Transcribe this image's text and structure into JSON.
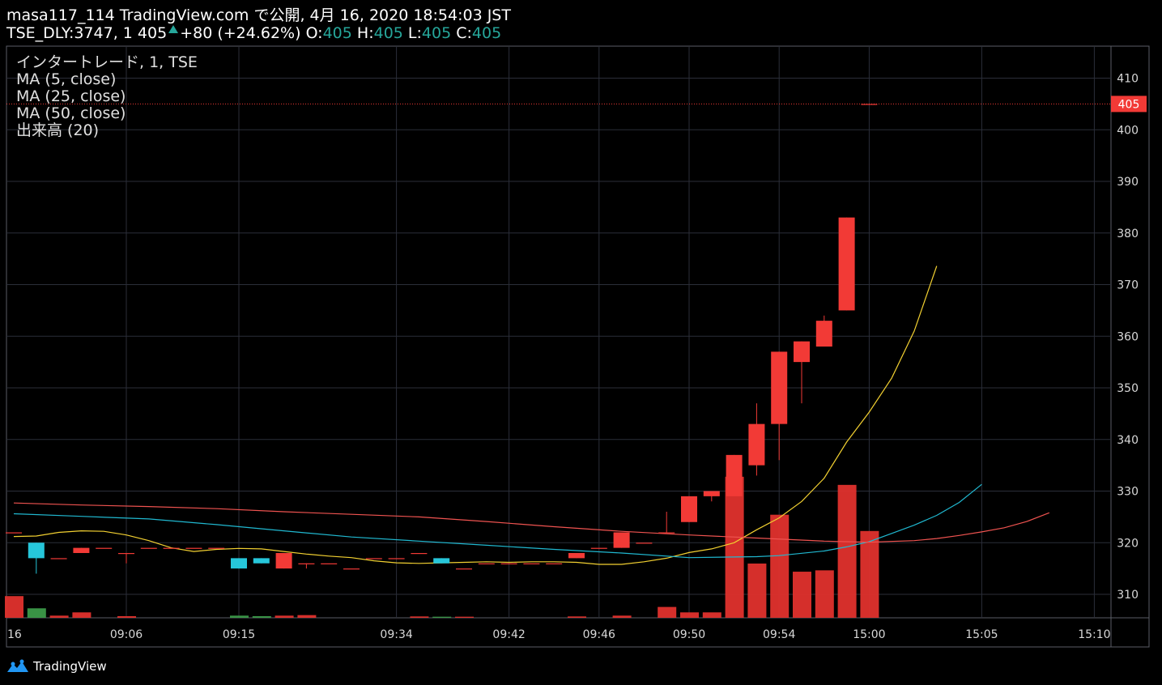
{
  "header": {
    "line1": "masa117_114 TradingView.com で公開, 4月 16, 2020 18:54:03 JST",
    "symbol": "TSE_DLY:3747, 1",
    "last": "405",
    "change": "+80 (+24.62%)",
    "o_label": "O:",
    "o": "405",
    "h_label": "H:",
    "h": "405",
    "l_label": "L:",
    "l": "405",
    "c_label": "C:",
    "c": "405"
  },
  "legend": [
    "インタートレード, 1, TSE",
    "MA (5, close)",
    "MA (25, close)",
    "MA (50, close)",
    "出来高 (20)"
  ],
  "brand": "TradingView",
  "chart_data": {
    "type": "candlestick",
    "y_ticks": [
      310,
      320,
      330,
      340,
      350,
      360,
      370,
      380,
      390,
      400,
      410
    ],
    "price_label": "405",
    "x_tick_labels": [
      {
        "i": 0,
        "label": "16"
      },
      {
        "i": 5,
        "label": "09:06"
      },
      {
        "i": 10,
        "label": "09:15"
      },
      {
        "i": 17,
        "label": "09:34"
      },
      {
        "i": 22,
        "label": "09:42"
      },
      {
        "i": 26,
        "label": "09:46"
      },
      {
        "i": 30,
        "label": "09:50"
      },
      {
        "i": 34,
        "label": "09:54"
      },
      {
        "i": 38,
        "label": "15:00"
      },
      {
        "i": 43,
        "label": "15:05"
      },
      {
        "i": 48,
        "label": "15:10"
      }
    ],
    "candles": [
      {
        "i": 0,
        "o": 322,
        "h": 322,
        "l": 322,
        "c": 322,
        "v": 4
      },
      {
        "i": 1,
        "o": 317,
        "h": 320,
        "l": 314,
        "c": 320,
        "v": 2
      },
      {
        "i": 2,
        "o": 317,
        "h": 317,
        "l": 317,
        "c": 317,
        "v": 0.4
      },
      {
        "i": 3,
        "o": 319,
        "h": 319,
        "l": 318,
        "c": 318,
        "v": 1
      },
      {
        "i": 4,
        "o": 319,
        "h": 319,
        "l": 319,
        "c": 319,
        "v": 0.2
      },
      {
        "i": 5,
        "o": 318,
        "h": 318,
        "l": 316,
        "c": 318,
        "v": 0.3
      },
      {
        "i": 6,
        "o": 319,
        "h": 319,
        "l": 319,
        "c": 319,
        "v": 0.1
      },
      {
        "i": 7,
        "o": 319,
        "h": 319,
        "l": 319,
        "c": 319,
        "v": 0.1
      },
      {
        "i": 8,
        "o": 319,
        "h": 319,
        "l": 319,
        "c": 319,
        "v": 0.1
      },
      {
        "i": 9,
        "o": 319,
        "h": 319,
        "l": 319,
        "c": 319,
        "v": 0.1
      },
      {
        "i": 10,
        "o": 315,
        "h": 317,
        "l": 315,
        "c": 317,
        "v": 0.5
      },
      {
        "i": 11,
        "o": 316,
        "h": 317,
        "l": 316,
        "c": 317,
        "v": 0.4
      },
      {
        "i": 12,
        "o": 318,
        "h": 318,
        "l": 315,
        "c": 315,
        "v": 0.3
      },
      {
        "i": 13,
        "o": 316,
        "h": 316,
        "l": 315,
        "c": 316,
        "v": 0.5
      },
      {
        "i": 14,
        "o": 316,
        "h": 316,
        "l": 316,
        "c": 316,
        "v": 0.1
      },
      {
        "i": 15,
        "o": 315,
        "h": 315,
        "l": 315,
        "c": 315,
        "v": 0.1
      },
      {
        "i": 16,
        "o": 317,
        "h": 317,
        "l": 317,
        "c": 317,
        "v": 0.1
      },
      {
        "i": 17,
        "o": 317,
        "h": 317,
        "l": 317,
        "c": 317,
        "v": 0.1
      },
      {
        "i": 18,
        "o": 318,
        "h": 318,
        "l": 318,
        "c": 318,
        "v": 0.1
      },
      {
        "i": 19,
        "o": 316,
        "h": 317,
        "l": 316,
        "c": 317,
        "v": 0.2
      },
      {
        "i": 20,
        "o": 315,
        "h": 315,
        "l": 315,
        "c": 315,
        "v": 0.1
      },
      {
        "i": 21,
        "o": 316,
        "h": 316,
        "l": 316,
        "c": 316,
        "v": 0.1
      },
      {
        "i": 22,
        "o": 316,
        "h": 316,
        "l": 316,
        "c": 316,
        "v": 0.1
      },
      {
        "i": 23,
        "o": 316,
        "h": 316,
        "l": 316,
        "c": 316,
        "v": 0.1
      },
      {
        "i": 24,
        "o": 316,
        "h": 316,
        "l": 316,
        "c": 316,
        "v": 0.1
      },
      {
        "i": 25,
        "o": 318,
        "h": 318,
        "l": 317,
        "c": 317,
        "v": 0.1
      },
      {
        "i": 26,
        "o": 319,
        "h": 319,
        "l": 319,
        "c": 319,
        "v": 0.1
      },
      {
        "i": 27,
        "o": 322,
        "h": 322,
        "l": 319,
        "c": 319,
        "v": 0.3
      },
      {
        "i": 28,
        "o": 320,
        "h": 320,
        "l": 320,
        "c": 320,
        "v": 0.1
      },
      {
        "i": 29,
        "o": 322,
        "h": 326,
        "l": 322,
        "c": 322,
        "v": 0.2
      },
      {
        "i": 30,
        "o": 329,
        "h": 329,
        "l": 324,
        "c": 324,
        "v": 4
      },
      {
        "i": 31,
        "o": 330,
        "h": 330,
        "l": 328,
        "c": 329,
        "v": 3
      },
      {
        "i": 32,
        "o": 337,
        "h": 337,
        "l": 329,
        "c": 329,
        "v": 3
      },
      {
        "i": 33,
        "o": 343,
        "h": 347,
        "l": 333,
        "c": 335,
        "v": 27
      },
      {
        "i": 34,
        "o": 357,
        "h": 357,
        "l": 336,
        "c": 343,
        "v": 48
      },
      {
        "i": 35,
        "o": 359,
        "h": 359,
        "l": 347,
        "c": 355,
        "v": 18
      },
      {
        "i": 36,
        "o": 363,
        "h": 364,
        "l": 358,
        "c": 358,
        "v": 35
      },
      {
        "i": 37,
        "o": 383,
        "h": 383,
        "l": 365,
        "c": 365,
        "v": 16
      },
      {
        "i": 38,
        "o": 405,
        "h": 405,
        "l": 405,
        "c": 405,
        "v": 17
      }
    ],
    "volume_bars": [
      {
        "i": 0,
        "v": 8,
        "up": false
      },
      {
        "i": 1,
        "v": 3.5,
        "up": true
      },
      {
        "i": 2,
        "v": 0.8,
        "up": false
      },
      {
        "i": 3,
        "v": 2,
        "up": false
      },
      {
        "i": 5,
        "v": 0.6,
        "up": false
      },
      {
        "i": 10,
        "v": 0.8,
        "up": true
      },
      {
        "i": 11,
        "v": 0.6,
        "up": true
      },
      {
        "i": 12,
        "v": 0.8,
        "up": false
      },
      {
        "i": 13,
        "v": 1,
        "up": false
      },
      {
        "i": 18,
        "v": 0.5,
        "up": false
      },
      {
        "i": 19,
        "v": 0.4,
        "up": true
      },
      {
        "i": 20,
        "v": 0.4,
        "up": false
      },
      {
        "i": 25,
        "v": 0.5,
        "up": false
      },
      {
        "i": 27,
        "v": 0.8,
        "up": false
      },
      {
        "i": 29,
        "v": 4,
        "up": false
      },
      {
        "i": 30,
        "v": 2,
        "up": false
      },
      {
        "i": 31,
        "v": 2,
        "up": false
      },
      {
        "i": 32,
        "v": 52,
        "up": false
      },
      {
        "i": 33,
        "v": 20,
        "up": false
      },
      {
        "i": 34,
        "v": 38,
        "up": false
      },
      {
        "i": 35,
        "v": 17,
        "up": false
      },
      {
        "i": 36,
        "v": 17.5,
        "up": false
      },
      {
        "i": 37,
        "v": 49,
        "up": false
      },
      {
        "i": 38,
        "v": 32,
        "up": false
      }
    ],
    "series": [
      {
        "color": "#f2d031",
        "points": [
          [
            0,
            321.2
          ],
          [
            1,
            321.3
          ],
          [
            2,
            322
          ],
          [
            3,
            322.3
          ],
          [
            4,
            322.2
          ],
          [
            5,
            321.5
          ],
          [
            6,
            320.4
          ],
          [
            7,
            319
          ],
          [
            8,
            318.3
          ],
          [
            9,
            318.7
          ],
          [
            10,
            318.9
          ],
          [
            11,
            318.8
          ],
          [
            12,
            318.3
          ],
          [
            13,
            317.8
          ],
          [
            14,
            317.4
          ],
          [
            15,
            317.1
          ],
          [
            16,
            316.5
          ],
          [
            17,
            316.1
          ],
          [
            18,
            316
          ],
          [
            19,
            316.1
          ],
          [
            20,
            316.2
          ],
          [
            21,
            316.3
          ],
          [
            22,
            316.2
          ],
          [
            23,
            316.3
          ],
          [
            24,
            316.3
          ],
          [
            25,
            316.2
          ],
          [
            26,
            315.8
          ],
          [
            27,
            315.8
          ],
          [
            28,
            316.3
          ],
          [
            29,
            317
          ],
          [
            30,
            318.1
          ],
          [
            31,
            318.8
          ],
          [
            32,
            320
          ],
          [
            33,
            322.5
          ],
          [
            34,
            324.8
          ],
          [
            35,
            328
          ],
          [
            36,
            332.5
          ],
          [
            37,
            339.5
          ],
          [
            38,
            345.3
          ],
          [
            39,
            351.9
          ],
          [
            40,
            361
          ],
          [
            41,
            373.6
          ]
        ]
      },
      {
        "color": "#20b8d0",
        "points": [
          [
            0,
            325.6
          ],
          [
            3,
            325.1
          ],
          [
            6,
            324.6
          ],
          [
            9,
            323.5
          ],
          [
            12,
            322.3
          ],
          [
            15,
            321.1
          ],
          [
            18,
            320.3
          ],
          [
            21,
            319.5
          ],
          [
            24,
            318.7
          ],
          [
            27,
            318
          ],
          [
            30,
            317.1
          ],
          [
            33,
            317.3
          ],
          [
            34,
            317.5
          ],
          [
            36,
            318.4
          ],
          [
            37,
            319.2
          ],
          [
            38,
            320.2
          ],
          [
            39,
            321.8
          ],
          [
            40,
            323.4
          ],
          [
            41,
            325.3
          ],
          [
            42,
            327.8
          ],
          [
            43,
            331.3
          ]
        ]
      },
      {
        "color": "#ef5350",
        "points": [
          [
            0,
            327.7
          ],
          [
            3,
            327.3
          ],
          [
            6,
            327
          ],
          [
            9,
            326.6
          ],
          [
            12,
            326
          ],
          [
            15,
            325.5
          ],
          [
            18,
            325
          ],
          [
            21,
            324.1
          ],
          [
            24,
            323.1
          ],
          [
            27,
            322.2
          ],
          [
            30,
            321.5
          ],
          [
            33,
            320.9
          ],
          [
            36,
            320.3
          ],
          [
            38,
            320.1
          ],
          [
            40,
            320.4
          ],
          [
            41,
            320.8
          ],
          [
            42,
            321.4
          ],
          [
            43,
            322.1
          ],
          [
            44,
            322.9
          ],
          [
            45,
            324.1
          ],
          [
            46,
            325.8
          ]
        ]
      }
    ]
  }
}
